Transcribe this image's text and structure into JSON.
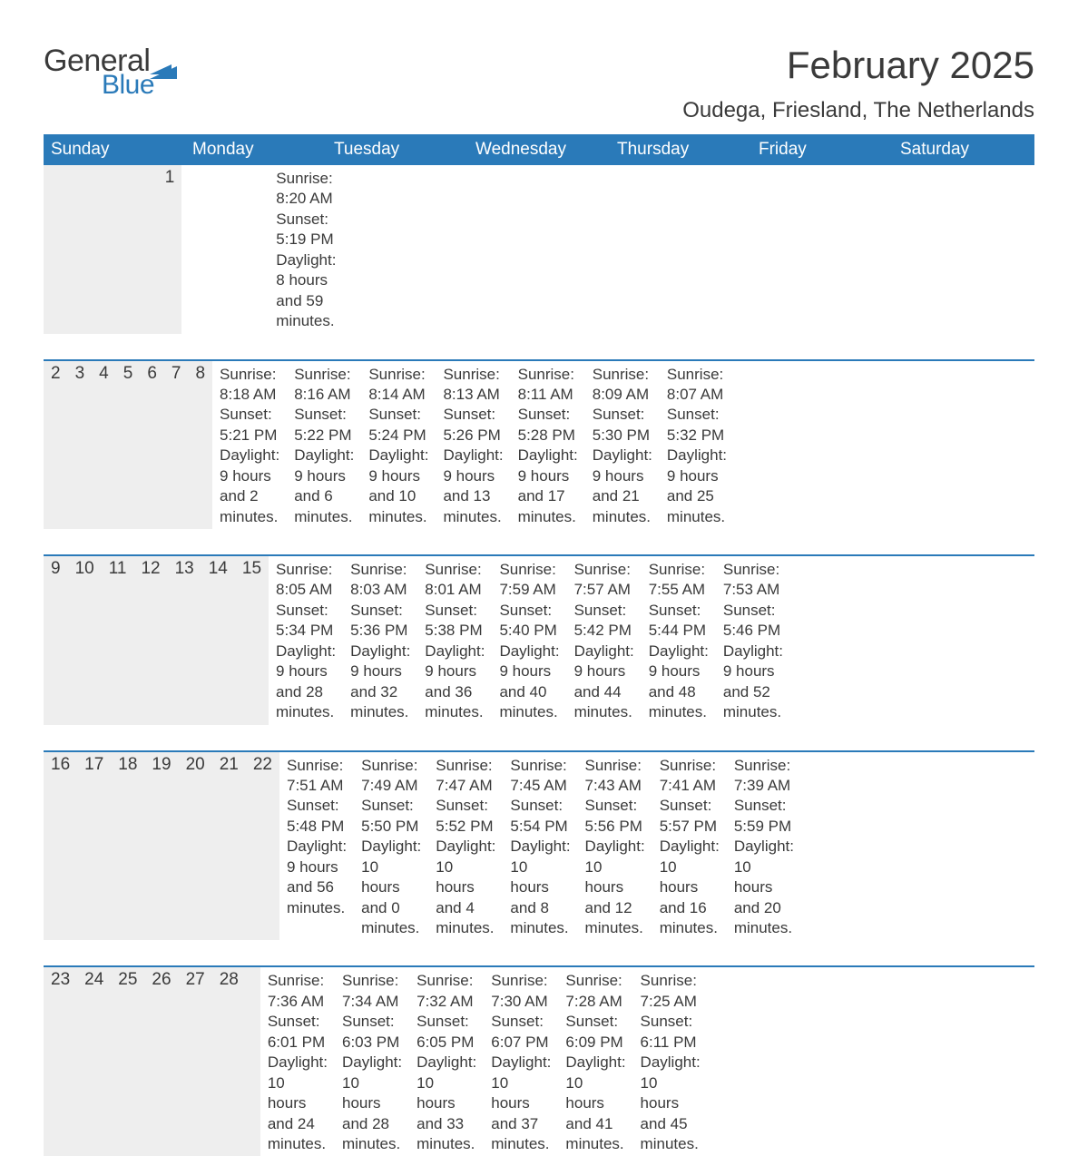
{
  "logo": {
    "part1": "General",
    "part2": "Blue",
    "accent_color": "#2a7ab9",
    "text_color": "#3a3a3a"
  },
  "title": "February 2025",
  "location": "Oudega, Friesland, The Netherlands",
  "colors": {
    "header_bg": "#2a7ab9",
    "header_text": "#ffffff",
    "daynum_bg": "#eeeeee",
    "row_border": "#2a7ab9",
    "body_text": "#3a3a3a",
    "page_bg": "#ffffff"
  },
  "fonts": {
    "title_size_pt": 32,
    "location_size_pt": 18,
    "header_size_pt": 14,
    "body_size_pt": 13
  },
  "weekdays": [
    "Sunday",
    "Monday",
    "Tuesday",
    "Wednesday",
    "Thursday",
    "Friday",
    "Saturday"
  ],
  "weeks": [
    {
      "days": [
        null,
        null,
        null,
        null,
        null,
        null,
        {
          "n": "1",
          "sunrise": "Sunrise: 8:20 AM",
          "sunset": "Sunset: 5:19 PM",
          "d1": "Daylight: 8 hours",
          "d2": "and 59 minutes."
        }
      ]
    },
    {
      "days": [
        {
          "n": "2",
          "sunrise": "Sunrise: 8:18 AM",
          "sunset": "Sunset: 5:21 PM",
          "d1": "Daylight: 9 hours",
          "d2": "and 2 minutes."
        },
        {
          "n": "3",
          "sunrise": "Sunrise: 8:16 AM",
          "sunset": "Sunset: 5:22 PM",
          "d1": "Daylight: 9 hours",
          "d2": "and 6 minutes."
        },
        {
          "n": "4",
          "sunrise": "Sunrise: 8:14 AM",
          "sunset": "Sunset: 5:24 PM",
          "d1": "Daylight: 9 hours",
          "d2": "and 10 minutes."
        },
        {
          "n": "5",
          "sunrise": "Sunrise: 8:13 AM",
          "sunset": "Sunset: 5:26 PM",
          "d1": "Daylight: 9 hours",
          "d2": "and 13 minutes."
        },
        {
          "n": "6",
          "sunrise": "Sunrise: 8:11 AM",
          "sunset": "Sunset: 5:28 PM",
          "d1": "Daylight: 9 hours",
          "d2": "and 17 minutes."
        },
        {
          "n": "7",
          "sunrise": "Sunrise: 8:09 AM",
          "sunset": "Sunset: 5:30 PM",
          "d1": "Daylight: 9 hours",
          "d2": "and 21 minutes."
        },
        {
          "n": "8",
          "sunrise": "Sunrise: 8:07 AM",
          "sunset": "Sunset: 5:32 PM",
          "d1": "Daylight: 9 hours",
          "d2": "and 25 minutes."
        }
      ]
    },
    {
      "days": [
        {
          "n": "9",
          "sunrise": "Sunrise: 8:05 AM",
          "sunset": "Sunset: 5:34 PM",
          "d1": "Daylight: 9 hours",
          "d2": "and 28 minutes."
        },
        {
          "n": "10",
          "sunrise": "Sunrise: 8:03 AM",
          "sunset": "Sunset: 5:36 PM",
          "d1": "Daylight: 9 hours",
          "d2": "and 32 minutes."
        },
        {
          "n": "11",
          "sunrise": "Sunrise: 8:01 AM",
          "sunset": "Sunset: 5:38 PM",
          "d1": "Daylight: 9 hours",
          "d2": "and 36 minutes."
        },
        {
          "n": "12",
          "sunrise": "Sunrise: 7:59 AM",
          "sunset": "Sunset: 5:40 PM",
          "d1": "Daylight: 9 hours",
          "d2": "and 40 minutes."
        },
        {
          "n": "13",
          "sunrise": "Sunrise: 7:57 AM",
          "sunset": "Sunset: 5:42 PM",
          "d1": "Daylight: 9 hours",
          "d2": "and 44 minutes."
        },
        {
          "n": "14",
          "sunrise": "Sunrise: 7:55 AM",
          "sunset": "Sunset: 5:44 PM",
          "d1": "Daylight: 9 hours",
          "d2": "and 48 minutes."
        },
        {
          "n": "15",
          "sunrise": "Sunrise: 7:53 AM",
          "sunset": "Sunset: 5:46 PM",
          "d1": "Daylight: 9 hours",
          "d2": "and 52 minutes."
        }
      ]
    },
    {
      "days": [
        {
          "n": "16",
          "sunrise": "Sunrise: 7:51 AM",
          "sunset": "Sunset: 5:48 PM",
          "d1": "Daylight: 9 hours",
          "d2": "and 56 minutes."
        },
        {
          "n": "17",
          "sunrise": "Sunrise: 7:49 AM",
          "sunset": "Sunset: 5:50 PM",
          "d1": "Daylight: 10 hours",
          "d2": "and 0 minutes."
        },
        {
          "n": "18",
          "sunrise": "Sunrise: 7:47 AM",
          "sunset": "Sunset: 5:52 PM",
          "d1": "Daylight: 10 hours",
          "d2": "and 4 minutes."
        },
        {
          "n": "19",
          "sunrise": "Sunrise: 7:45 AM",
          "sunset": "Sunset: 5:54 PM",
          "d1": "Daylight: 10 hours",
          "d2": "and 8 minutes."
        },
        {
          "n": "20",
          "sunrise": "Sunrise: 7:43 AM",
          "sunset": "Sunset: 5:56 PM",
          "d1": "Daylight: 10 hours",
          "d2": "and 12 minutes."
        },
        {
          "n": "21",
          "sunrise": "Sunrise: 7:41 AM",
          "sunset": "Sunset: 5:57 PM",
          "d1": "Daylight: 10 hours",
          "d2": "and 16 minutes."
        },
        {
          "n": "22",
          "sunrise": "Sunrise: 7:39 AM",
          "sunset": "Sunset: 5:59 PM",
          "d1": "Daylight: 10 hours",
          "d2": "and 20 minutes."
        }
      ]
    },
    {
      "days": [
        {
          "n": "23",
          "sunrise": "Sunrise: 7:36 AM",
          "sunset": "Sunset: 6:01 PM",
          "d1": "Daylight: 10 hours",
          "d2": "and 24 minutes."
        },
        {
          "n": "24",
          "sunrise": "Sunrise: 7:34 AM",
          "sunset": "Sunset: 6:03 PM",
          "d1": "Daylight: 10 hours",
          "d2": "and 28 minutes."
        },
        {
          "n": "25",
          "sunrise": "Sunrise: 7:32 AM",
          "sunset": "Sunset: 6:05 PM",
          "d1": "Daylight: 10 hours",
          "d2": "and 33 minutes."
        },
        {
          "n": "26",
          "sunrise": "Sunrise: 7:30 AM",
          "sunset": "Sunset: 6:07 PM",
          "d1": "Daylight: 10 hours",
          "d2": "and 37 minutes."
        },
        {
          "n": "27",
          "sunrise": "Sunrise: 7:28 AM",
          "sunset": "Sunset: 6:09 PM",
          "d1": "Daylight: 10 hours",
          "d2": "and 41 minutes."
        },
        {
          "n": "28",
          "sunrise": "Sunrise: 7:25 AM",
          "sunset": "Sunset: 6:11 PM",
          "d1": "Daylight: 10 hours",
          "d2": "and 45 minutes."
        },
        null
      ]
    }
  ]
}
